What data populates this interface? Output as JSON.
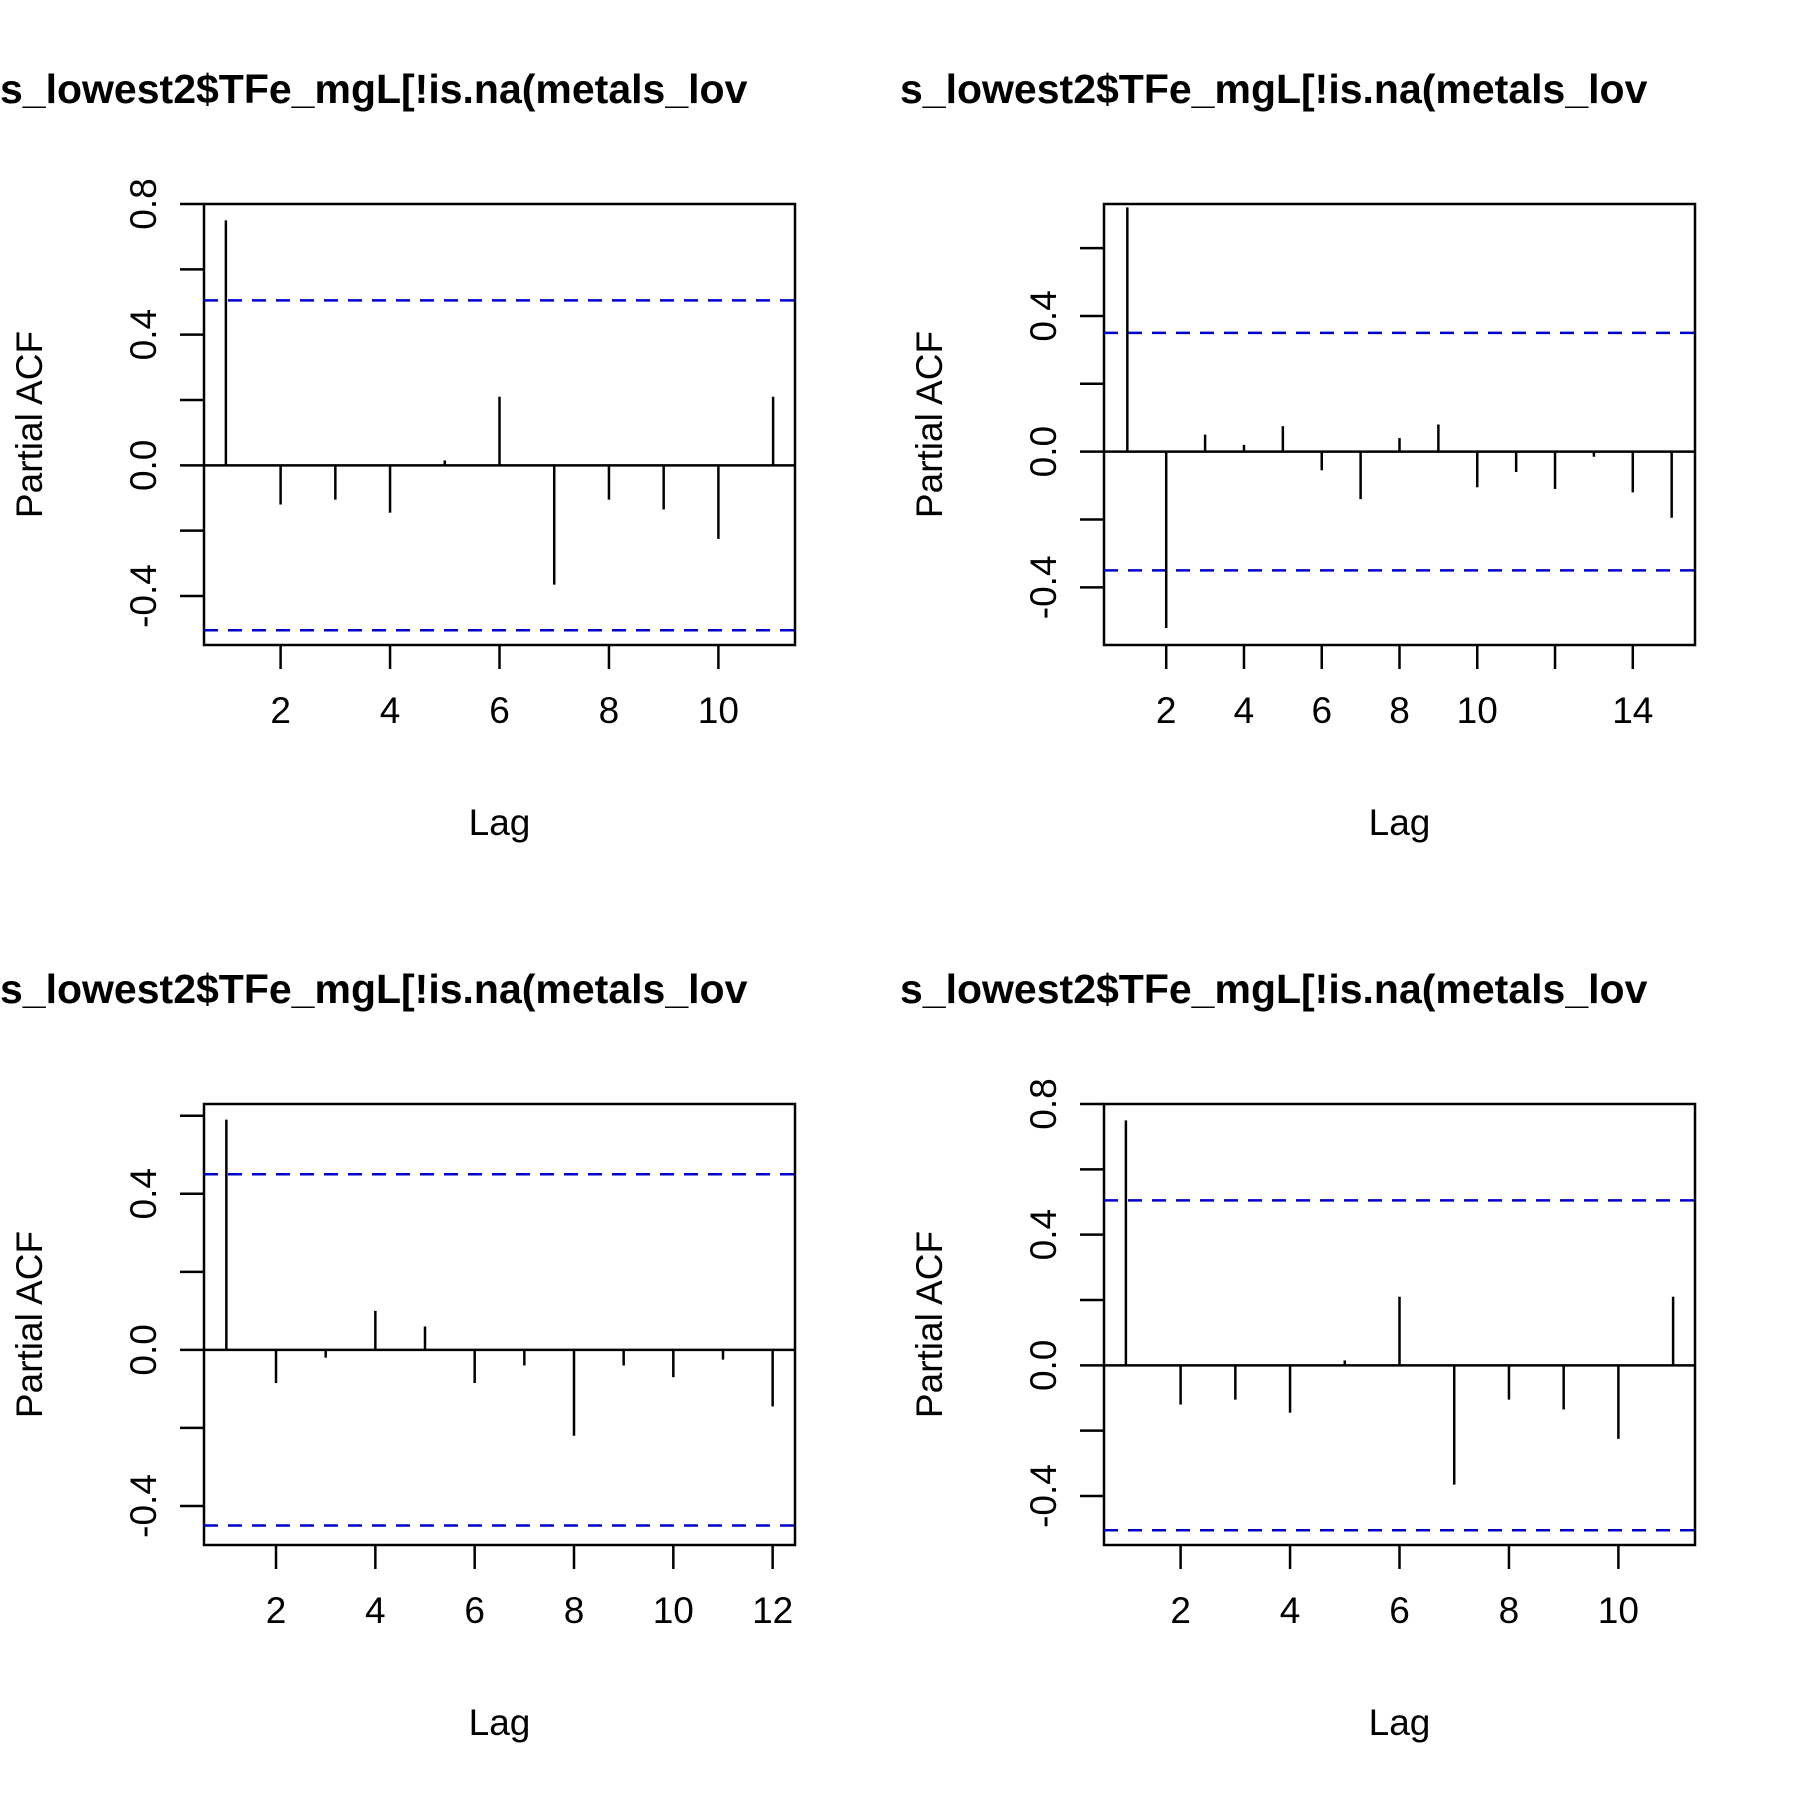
{
  "chart_data": [
    {
      "type": "bar",
      "subtype": "partial-acf",
      "title": "s_lowest2$TFe_mgL[!is.na(metals_lov",
      "xlabel": "Lag",
      "ylabel": "Partial ACF",
      "xlim": [
        0.6,
        11.4
      ],
      "ylim": [
        -0.55,
        0.8
      ],
      "xticks": [
        2,
        4,
        6,
        8,
        10
      ],
      "yticks": [
        -0.4,
        -0.2,
        0.0,
        0.2,
        0.4,
        0.6,
        0.8
      ],
      "yticklabels": [
        "-0.4",
        "",
        "0.0",
        "",
        "0.4",
        "",
        "0.8"
      ],
      "confidence_limit": 0.505,
      "lags": [
        1,
        2,
        3,
        4,
        5,
        6,
        7,
        8,
        9,
        10,
        11
      ],
      "values": [
        0.75,
        -0.12,
        -0.105,
        -0.145,
        0.015,
        0.21,
        -0.365,
        -0.105,
        -0.135,
        -0.225,
        0.21
      ],
      "grid": false,
      "colors": {
        "bars": "#000000",
        "confidence": "#0000cc"
      }
    },
    {
      "type": "bar",
      "subtype": "partial-acf",
      "title": "s_lowest2$TFe_mgL[!is.na(metals_lov",
      "xlabel": "Lag",
      "ylabel": "Partial ACF",
      "xlim": [
        0.4,
        15.6
      ],
      "ylim": [
        -0.57,
        0.73
      ],
      "xticks": [
        2,
        4,
        6,
        8,
        10,
        12,
        14
      ],
      "xticklabels": [
        "2",
        "4",
        "6",
        "8",
        "10",
        "",
        "14"
      ],
      "yticks": [
        -0.4,
        -0.2,
        0.0,
        0.2,
        0.4,
        0.6
      ],
      "yticklabels": [
        "-0.4",
        "",
        "0.0",
        "",
        "0.4",
        ""
      ],
      "confidence_limit": 0.35,
      "lags": [
        1,
        2,
        3,
        4,
        5,
        6,
        7,
        8,
        9,
        10,
        11,
        12,
        13,
        14,
        15
      ],
      "values": [
        0.72,
        -0.52,
        0.05,
        0.02,
        0.075,
        -0.055,
        -0.14,
        0.04,
        0.08,
        -0.105,
        -0.06,
        -0.11,
        -0.015,
        -0.12,
        -0.195
      ],
      "grid": false,
      "colors": {
        "bars": "#000000",
        "confidence": "#0000cc"
      }
    },
    {
      "type": "bar",
      "subtype": "partial-acf",
      "title": "s_lowest2$TFe_mgL[!is.na(metals_lov",
      "xlabel": "Lag",
      "ylabel": "Partial ACF",
      "xlim": [
        0.55,
        12.45
      ],
      "ylim": [
        -0.5,
        0.63
      ],
      "xticks": [
        2,
        4,
        6,
        8,
        10,
        12
      ],
      "yticks": [
        -0.4,
        -0.2,
        0.0,
        0.2,
        0.4,
        0.6
      ],
      "yticklabels": [
        "-0.4",
        "",
        "0.0",
        "",
        "0.4",
        ""
      ],
      "confidence_limit": 0.45,
      "lags": [
        1,
        2,
        3,
        4,
        5,
        6,
        7,
        8,
        9,
        10,
        11,
        12
      ],
      "values": [
        0.59,
        -0.085,
        -0.02,
        0.1,
        0.06,
        -0.085,
        -0.04,
        -0.22,
        -0.04,
        -0.07,
        -0.025,
        -0.145
      ],
      "grid": false,
      "colors": {
        "bars": "#000000",
        "confidence": "#0000cc"
      }
    },
    {
      "type": "bar",
      "subtype": "partial-acf",
      "title": "s_lowest2$TFe_mgL[!is.na(metals_lov",
      "xlabel": "Lag",
      "ylabel": "Partial ACF",
      "xlim": [
        0.6,
        11.4
      ],
      "ylim": [
        -0.55,
        0.8
      ],
      "xticks": [
        2,
        4,
        6,
        8,
        10
      ],
      "yticks": [
        -0.4,
        -0.2,
        0.0,
        0.2,
        0.4,
        0.6,
        0.8
      ],
      "yticklabels": [
        "-0.4",
        "",
        "0.0",
        "",
        "0.4",
        "",
        "0.8"
      ],
      "confidence_limit": 0.505,
      "lags": [
        1,
        2,
        3,
        4,
        5,
        6,
        7,
        8,
        9,
        10,
        11
      ],
      "values": [
        0.75,
        -0.12,
        -0.105,
        -0.145,
        0.015,
        0.21,
        -0.365,
        -0.105,
        -0.135,
        -0.225,
        0.21
      ],
      "grid": false,
      "colors": {
        "bars": "#000000",
        "confidence": "#0000cc"
      }
    }
  ]
}
